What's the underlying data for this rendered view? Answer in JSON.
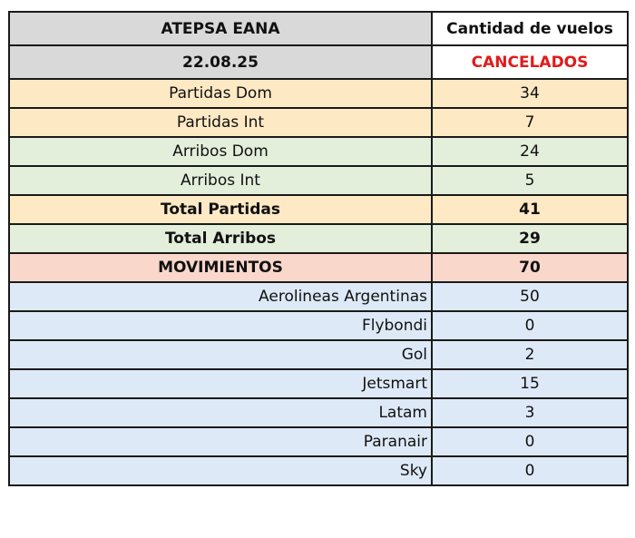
{
  "header": {
    "org": "ATEPSA EANA",
    "date": "22.08.25",
    "col_title": "Cantidad de vuelos",
    "col_subtitle": "CANCELADOS"
  },
  "colors": {
    "header_gray": "#d9d9d9",
    "yellow": "#fde9c4",
    "green": "#e3eedb",
    "salmon": "#f9d8cb",
    "blue": "#dde9f6",
    "accent_red": "#e01b1b"
  },
  "rows": [
    {
      "label": "Partidas Dom",
      "value": "34"
    },
    {
      "label": "Partidas Int",
      "value": "7"
    },
    {
      "label": "Arribos Dom",
      "value": "24"
    },
    {
      "label": "Arribos Int",
      "value": "5"
    },
    {
      "label": "Total Partidas",
      "value": "41"
    },
    {
      "label": "Total Arribos",
      "value": "29"
    },
    {
      "label": "MOVIMIENTOS",
      "value": "70"
    }
  ],
  "airlines": [
    {
      "label": "Aerolineas Argentinas",
      "value": "50"
    },
    {
      "label": "Flybondi",
      "value": "0"
    },
    {
      "label": "Gol",
      "value": "2"
    },
    {
      "label": "Jetsmart",
      "value": "15"
    },
    {
      "label": "Latam",
      "value": "3"
    },
    {
      "label": "Paranair",
      "value": "0"
    },
    {
      "label": "Sky",
      "value": "0"
    }
  ]
}
